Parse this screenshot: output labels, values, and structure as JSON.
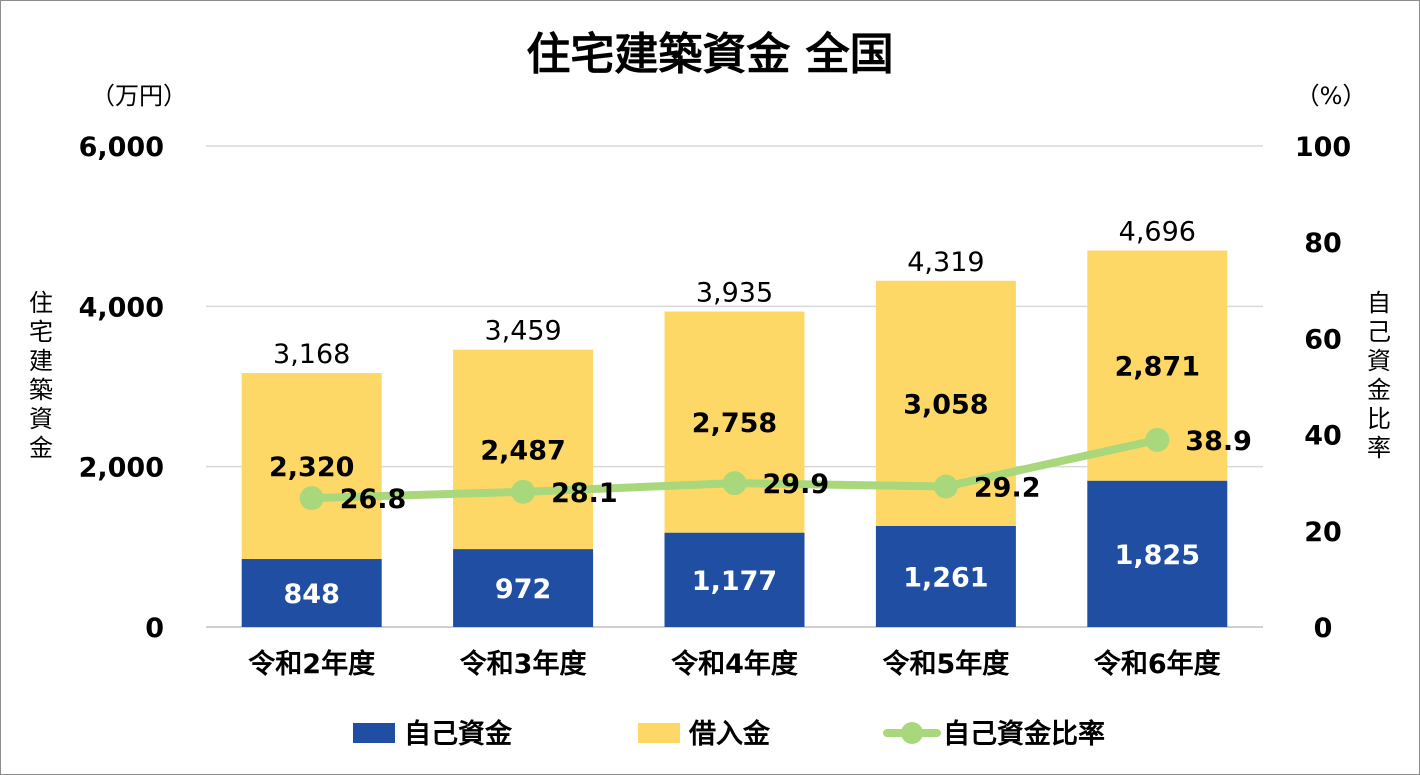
{
  "chart_data": {
    "type": "bar",
    "title": "住宅建築資金 全国",
    "left_unit": "（万円）",
    "right_unit": "（%）",
    "left_axis_label": "住宅建築資金",
    "right_axis_label": "自己資金比率",
    "categories": [
      "令和2年度",
      "令和3年度",
      "令和4年度",
      "令和5年度",
      "令和6年度"
    ],
    "left_ylim": [
      0,
      6000
    ],
    "left_ticks": [
      "0",
      "2,000",
      "4,000",
      "6,000"
    ],
    "left_tick_values": [
      0,
      2000,
      4000,
      6000
    ],
    "right_ylim": [
      0,
      100
    ],
    "right_ticks": [
      "0",
      "20",
      "40",
      "60",
      "80",
      "100"
    ],
    "right_tick_values": [
      0,
      20,
      40,
      60,
      80,
      100
    ],
    "grid": true,
    "series": [
      {
        "name": "自己資金",
        "type": "bar",
        "stacked": true,
        "axis": "left",
        "color": "#1f4ea3",
        "values": [
          848,
          972,
          1177,
          1261,
          1825
        ],
        "labels": [
          "848",
          "972",
          "1,177",
          "1,261",
          "1,825"
        ]
      },
      {
        "name": "借入金",
        "type": "bar",
        "stacked": true,
        "axis": "left",
        "color": "#fdd866",
        "values": [
          2320,
          2487,
          2758,
          3058,
          2871
        ],
        "labels": [
          "2,320",
          "2,487",
          "2,758",
          "3,058",
          "2,871"
        ]
      },
      {
        "name": "自己資金比率",
        "type": "line",
        "axis": "right",
        "color": "#a9d77b",
        "values": [
          26.8,
          28.1,
          29.9,
          29.2,
          38.9
        ],
        "labels": [
          "26.8",
          "28.1",
          "29.9",
          "29.2",
          "38.9"
        ]
      }
    ],
    "totals": [
      3168,
      3459,
      3935,
      4319,
      4696
    ],
    "total_labels": [
      "3,168",
      "3,459",
      "3,935",
      "4,319",
      "4,696"
    ],
    "legend_position": "bottom"
  }
}
